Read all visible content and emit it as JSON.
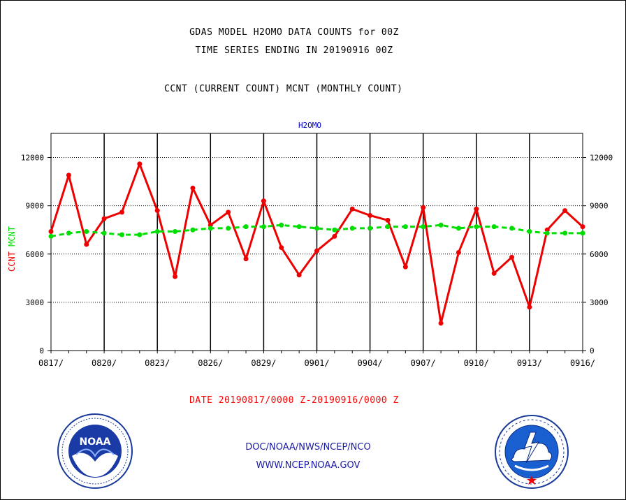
{
  "header": {
    "title_line1": "GDAS MODEL H2OMO DATA COUNTS for 00Z",
    "title_line2": "TIME SERIES ENDING IN 20190916 00Z",
    "subtitle": "CCNT (CURRENT COUNT) MCNT (MONTHLY COUNT)"
  },
  "footer": {
    "date_range": "DATE 20190817/0000 Z-20190916/0000 Z",
    "credit_line1": "DOC/NOAA/NWS/NCEP/NCO",
    "credit_line2": "WWW.NCEP.NOAA.GOV"
  },
  "logos": {
    "left": {
      "name": "noaa-logo",
      "text": "NOAA"
    },
    "right": {
      "name": "nws-logo"
    }
  },
  "colors": {
    "ccnt": "#ee0000",
    "mcnt": "#00dd00",
    "plot_title": "#0000cc",
    "axis": "#000000"
  },
  "chart_data": {
    "type": "line",
    "title": "H2OMO",
    "ylabel_series": [
      {
        "text": "CCNT",
        "color": "#ee0000"
      },
      {
        "text": "MCNT",
        "color": "#00dd00"
      }
    ],
    "ylim": [
      0,
      13500
    ],
    "yticks": [
      0,
      3000,
      6000,
      9000,
      12000
    ],
    "grid": true,
    "x_labels": [
      "0817/",
      "0820/",
      "0823/",
      "0826/",
      "0829/",
      "0901/",
      "0904/",
      "0907/",
      "0910/",
      "0913/",
      "0916/"
    ],
    "x_label_step_days": 3,
    "series": [
      {
        "name": "CCNT",
        "style": "solid",
        "values": [
          7400,
          10900,
          6600,
          8200,
          8600,
          11600,
          8700,
          4600,
          10100,
          7800,
          8600,
          5700,
          9300,
          6400,
          4700,
          6200,
          7100,
          8800,
          8400,
          8100,
          5200,
          8900,
          1700,
          6100,
          8800,
          4800,
          5800,
          2700,
          7500,
          8700,
          7700
        ]
      },
      {
        "name": "MCNT",
        "style": "dashed",
        "values": [
          7100,
          7300,
          7400,
          7300,
          7200,
          7200,
          7400,
          7400,
          7500,
          7600,
          7600,
          7700,
          7700,
          7800,
          7700,
          7600,
          7500,
          7600,
          7600,
          7700,
          7700,
          7700,
          7800,
          7600,
          7700,
          7700,
          7600,
          7400,
          7300,
          7300,
          7300
        ]
      }
    ]
  }
}
